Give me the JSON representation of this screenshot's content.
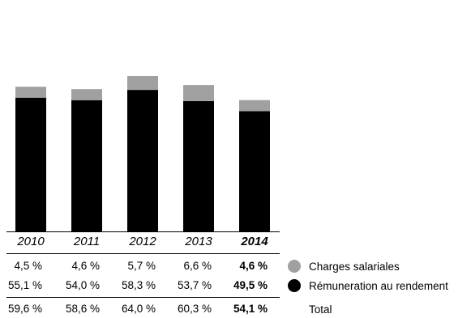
{
  "colors": {
    "charges": "#a0a0a0",
    "remuneration": "#000000"
  },
  "chart_data": {
    "type": "bar",
    "stacked": true,
    "categories": [
      "2010",
      "2011",
      "2012",
      "2013",
      "2014"
    ],
    "highlight_category": "2014",
    "series": [
      {
        "name": "Rémuneration au rendement",
        "values": [
          55.1,
          54.0,
          58.3,
          53.7,
          49.5
        ],
        "color": "#000000"
      },
      {
        "name": "Charges salariales",
        "values": [
          4.5,
          4.6,
          5.7,
          6.6,
          4.6
        ],
        "color": "#a0a0a0"
      }
    ],
    "ylim": [
      0,
      64
    ],
    "grid": false
  },
  "table": {
    "rows": [
      {
        "key": "charges",
        "legend": "Charges salariales",
        "cells": [
          "4,5 %",
          "4,6 %",
          "5,7 %",
          "6,6 %",
          "4,6 %"
        ]
      },
      {
        "key": "remuneration",
        "legend": "Rémuneration au rendement",
        "cells": [
          "55,1 %",
          "54,0 %",
          "58,3 %",
          "53,7 %",
          "49,5 %"
        ]
      },
      {
        "key": "total",
        "legend": "Total",
        "cells": [
          "59,6 %",
          "58,6 %",
          "64,0 %",
          "60,3 %",
          "54,1 %"
        ]
      }
    ]
  }
}
